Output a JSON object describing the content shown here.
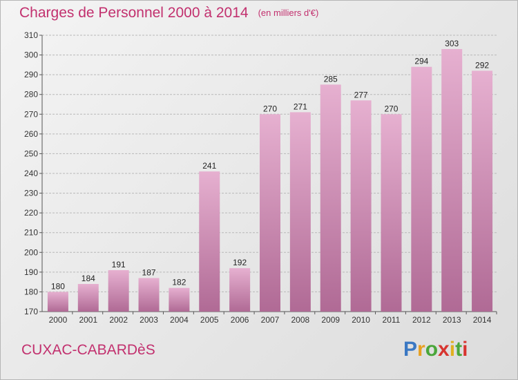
{
  "title": "Charges de Personnel 2000 à 2014",
  "unit": "(en milliers d'€)",
  "commune": "CUXAC-CABARDèS",
  "logo": "Proxiti",
  "colors": {
    "title": "#c2306e",
    "bar_light": "#e6b0d0",
    "bar_dark": "#b06a95",
    "grid": "#b8b8b8"
  },
  "chart_data": {
    "type": "bar",
    "title": "Charges de Personnel 2000 à 2014",
    "xlabel": "",
    "ylabel": "",
    "ylim": [
      170,
      310
    ],
    "yticks": [
      170,
      180,
      190,
      200,
      210,
      220,
      230,
      240,
      250,
      260,
      270,
      280,
      290,
      300,
      310
    ],
    "grid": true,
    "categories": [
      "2000",
      "2001",
      "2002",
      "2003",
      "2004",
      "2005",
      "2006",
      "2007",
      "2008",
      "2009",
      "2010",
      "2011",
      "2012",
      "2013",
      "2014"
    ],
    "values": [
      180,
      184,
      191,
      187,
      182,
      241,
      192,
      270,
      271,
      285,
      277,
      270,
      294,
      303,
      292
    ]
  }
}
